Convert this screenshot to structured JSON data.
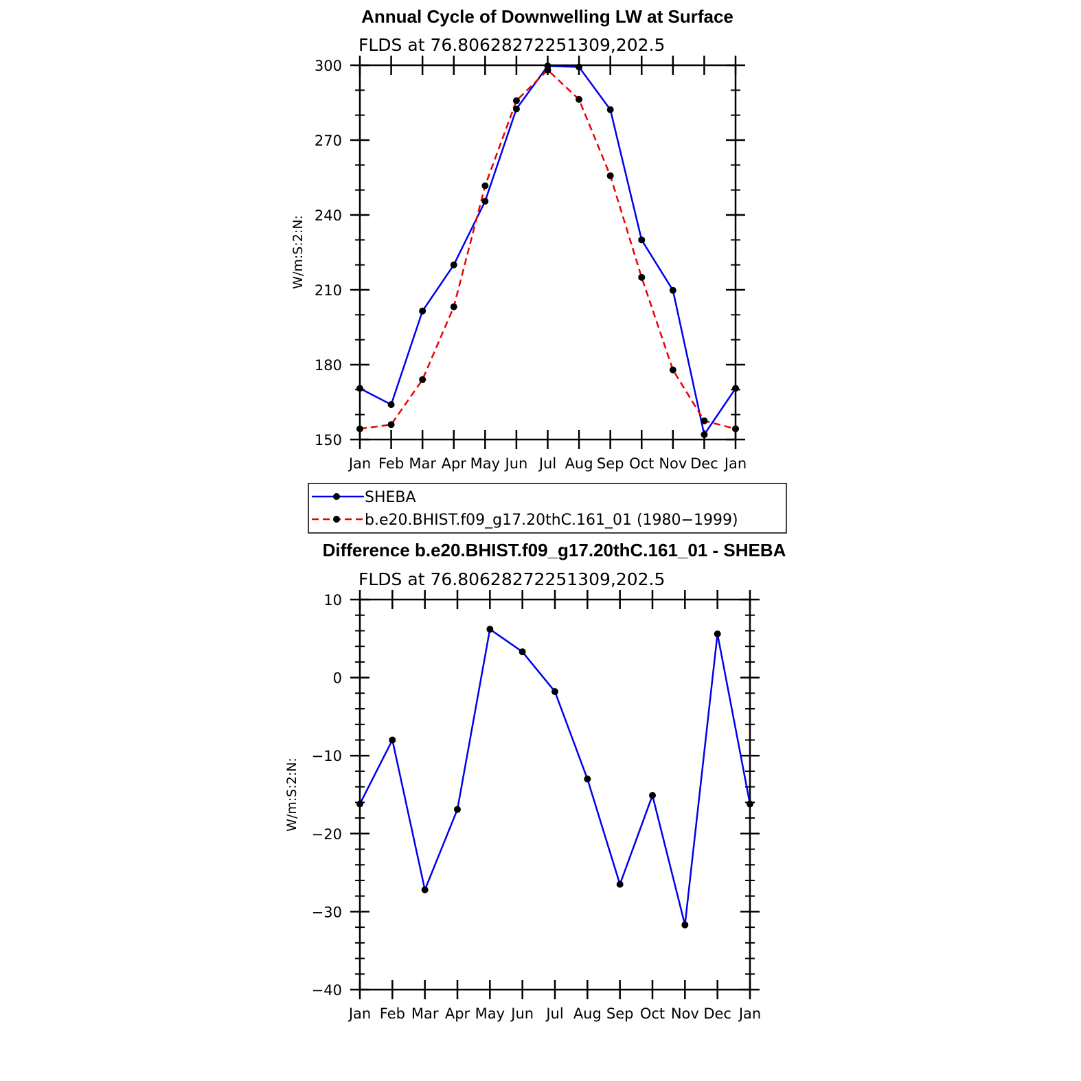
{
  "chart_data": [
    {
      "type": "line",
      "title": "Annual Cycle of Downwelling LW at Surface",
      "subtitle": "FLDS at 76.80628272251309,202.5",
      "ylabel": "W/m:S:2:N:",
      "xlabel": "",
      "categories": [
        "Jan",
        "Feb",
        "Mar",
        "Apr",
        "May",
        "Jun",
        "Jul",
        "Aug",
        "Sep",
        "Oct",
        "Nov",
        "Dec",
        "Jan"
      ],
      "ylim": [
        150,
        300
      ],
      "yticks": [
        "150",
        "180",
        "210",
        "240",
        "270",
        "300"
      ],
      "legend_position": "bottom",
      "series": [
        {
          "name": "SHEBA",
          "color": "#0000ee",
          "dash": "solid",
          "values": [
            170.5,
            164,
            201.5,
            220,
            245.5,
            282.5,
            299.7,
            299.3,
            282.2,
            230,
            209.8,
            152,
            170.5
          ]
        },
        {
          "name": "b.e20.BHIST.f09_g17.20thC.161_01 (1980−1999)",
          "color": "#ee0000",
          "dash": "dashed",
          "values": [
            154.3,
            156,
            174,
            203.2,
            251.7,
            285.8,
            298.1,
            286.3,
            255.7,
            215,
            177.9,
            157.5,
            154.3
          ]
        }
      ]
    },
    {
      "type": "line",
      "title": "Difference b.e20.BHIST.f09_g17.20thC.161_01 - SHEBA",
      "subtitle": "FLDS at 76.80628272251309,202.5",
      "ylabel": "W/m:S:2:N:",
      "xlabel": "",
      "categories": [
        "Jan",
        "Feb",
        "Mar",
        "Apr",
        "May",
        "Jun",
        "Jul",
        "Aug",
        "Sep",
        "Oct",
        "Nov",
        "Dec",
        "Jan"
      ],
      "ylim": [
        -40,
        10
      ],
      "yticks": [
        "−40",
        "−30",
        "−20",
        "−10",
        "0",
        "10"
      ],
      "series": [
        {
          "color": "#0000ee",
          "dash": "solid",
          "values": [
            -16.2,
            -8,
            -27.2,
            -16.9,
            6.2,
            3.3,
            -1.8,
            -13,
            -26.5,
            -15.1,
            -31.7,
            5.6,
            -16.2
          ]
        }
      ]
    }
  ]
}
